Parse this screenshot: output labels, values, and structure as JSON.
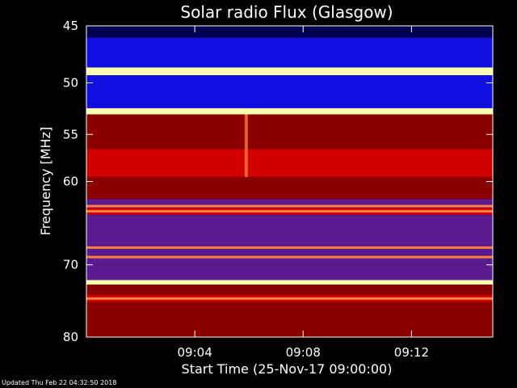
{
  "footer": {
    "updated": "Updated Thu Feb 22 04:32:50 2018"
  },
  "chart_data": {
    "type": "heatmap",
    "title": "Solar radio Flux (Glasgow)",
    "xlabel": "Start Time (25-Nov-17 09:00:00)",
    "ylabel": "Frequency [MHz]",
    "x_unit": "minutes",
    "xlim": [
      0,
      15
    ],
    "ylim": [
      45,
      80
    ],
    "y_scale": "log",
    "y_ticks": [
      45,
      50,
      55,
      60,
      70,
      80
    ],
    "y_tick_labels": [
      "45",
      "50",
      "55",
      "60",
      "70",
      "80"
    ],
    "x_ticks": [
      4,
      8,
      12
    ],
    "x_tick_labels": [
      "09:04",
      "09:08",
      "09:12"
    ],
    "colors": {
      "background": "#000000",
      "low": "#000050",
      "blue": "#1010e0",
      "purple": "#5a1a90",
      "dark_red": "#8a0000",
      "red": "#d00000",
      "orange": "#ff8040",
      "hot": "#ffffb0"
    },
    "bands": [
      {
        "from": 45.0,
        "to": 46.0,
        "level": "low"
      },
      {
        "from": 46.0,
        "to": 48.6,
        "level": "blue"
      },
      {
        "from": 48.6,
        "to": 49.3,
        "level": "hot"
      },
      {
        "from": 49.3,
        "to": 52.4,
        "level": "blue"
      },
      {
        "from": 52.4,
        "to": 53.0,
        "level": "hot"
      },
      {
        "from": 53.0,
        "to": 56.5,
        "level": "dark_red"
      },
      {
        "from": 56.5,
        "to": 59.5,
        "level": "red"
      },
      {
        "from": 59.5,
        "to": 62.0,
        "level": "dark_red"
      },
      {
        "from": 62.0,
        "to": 63.0,
        "level": "purple"
      },
      {
        "from": 63.0,
        "to": 63.8,
        "level": "red"
      },
      {
        "from": 63.8,
        "to": 67.5,
        "level": "purple"
      },
      {
        "from": 67.5,
        "to": 70.0,
        "level": "purple"
      },
      {
        "from": 70.0,
        "to": 72.0,
        "level": "purple"
      },
      {
        "from": 72.0,
        "to": 72.6,
        "level": "hot"
      },
      {
        "from": 72.6,
        "to": 74.0,
        "level": "dark_red"
      },
      {
        "from": 74.0,
        "to": 75.0,
        "level": "red"
      },
      {
        "from": 75.0,
        "to": 80.0,
        "level": "dark_red"
      }
    ],
    "lines": [
      {
        "freq": 48.9,
        "level": "hot"
      },
      {
        "freq": 52.7,
        "level": "hot"
      },
      {
        "freq": 62.8,
        "level": "orange"
      },
      {
        "freq": 63.4,
        "level": "orange"
      },
      {
        "freq": 67.8,
        "level": "orange"
      },
      {
        "freq": 69.0,
        "level": "orange"
      },
      {
        "freq": 72.3,
        "level": "hot"
      },
      {
        "freq": 74.5,
        "level": "orange"
      }
    ],
    "burst": {
      "time": 5.9,
      "freq_from": 53.0,
      "freq_to": 59.5,
      "level": "orange"
    }
  }
}
